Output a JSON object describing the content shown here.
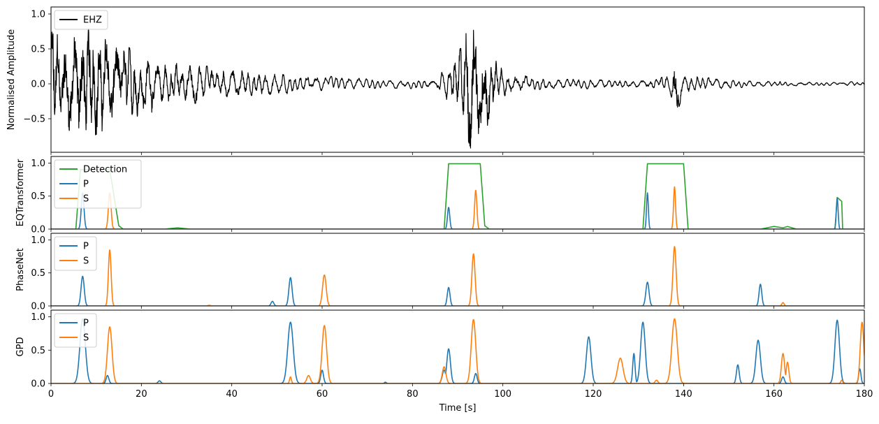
{
  "colors": {
    "waveform": "#000000",
    "detection": "#2ca02c",
    "p": "#1f77b4",
    "s": "#ff7f0e"
  },
  "chart_data": [
    {
      "type": "line",
      "id": "waveform",
      "ylabel": "Normalised Amplitude",
      "ylim": [
        -0.98,
        1.1
      ],
      "yticks": [
        -0.5,
        0.0,
        0.5,
        1.0
      ],
      "ytick_labels": [
        "−0.5",
        "0.0",
        "0.5",
        "1.0"
      ],
      "xlim": [
        0,
        180
      ],
      "legend": "top-left",
      "series": [
        {
          "name": "EHZ",
          "color": "#000000",
          "envelope": [
            [
              0,
              0.95
            ],
            [
              2,
              0.6
            ],
            [
              5,
              0.7
            ],
            [
              8,
              0.8
            ],
            [
              12,
              0.65
            ],
            [
              18,
              0.5
            ],
            [
              25,
              0.35
            ],
            [
              35,
              0.25
            ],
            [
              45,
              0.2
            ],
            [
              55,
              0.12
            ],
            [
              65,
              0.1
            ],
            [
              75,
              0.06
            ],
            [
              85,
              0.08
            ],
            [
              88,
              0.25
            ],
            [
              91,
              0.55
            ],
            [
              93,
              0.95
            ],
            [
              96,
              0.7
            ],
            [
              98,
              0.35
            ],
            [
              102,
              0.15
            ],
            [
              110,
              0.08
            ],
            [
              130,
              0.06
            ],
            [
              137,
              0.12
            ],
            [
              138,
              0.5
            ],
            [
              140,
              0.15
            ],
            [
              150,
              0.06
            ],
            [
              165,
              0.03
            ],
            [
              180,
              0.03
            ]
          ]
        }
      ]
    },
    {
      "type": "line",
      "id": "eqtransformer",
      "ylabel": "EQTransformer",
      "ylim": [
        0,
        1.1
      ],
      "yticks": [
        0.0,
        0.5,
        1.0
      ],
      "ytick_labels": [
        "0.0",
        "0.5",
        "1.0"
      ],
      "xlim": [
        0,
        180
      ],
      "legend": "top-left",
      "series": [
        {
          "name": "Detection",
          "color": "#2ca02c",
          "points": [
            [
              0,
              0
            ],
            [
              5.5,
              0
            ],
            [
              6.5,
              0.9
            ],
            [
              13,
              0.9
            ],
            [
              15,
              0.05
            ],
            [
              16,
              0
            ],
            [
              25,
              0
            ],
            [
              28,
              0.02
            ],
            [
              31,
              0
            ],
            [
              87,
              0
            ],
            [
              88,
              0.99
            ],
            [
              95,
              0.99
            ],
            [
              96,
              0.05
            ],
            [
              97,
              0
            ],
            [
              131,
              0
            ],
            [
              132,
              0.99
            ],
            [
              140,
              0.99
            ],
            [
              141,
              0
            ],
            [
              157,
              0
            ],
            [
              160,
              0.04
            ],
            [
              162,
              0.02
            ],
            [
              163,
              0.04
            ],
            [
              165,
              0
            ],
            [
              173.5,
              0
            ],
            [
              174,
              0.48
            ],
            [
              175,
              0.42
            ],
            [
              175.2,
              0
            ],
            [
              180,
              0
            ]
          ]
        },
        {
          "name": "P",
          "color": "#1f77b4",
          "peaks": [
            [
              7,
              0.55,
              0.3
            ],
            [
              88,
              0.33,
              0.25
            ],
            [
              132,
              0.55,
              0.2
            ],
            [
              174,
              0.47,
              0.2
            ]
          ]
        },
        {
          "name": "S",
          "color": "#ff7f0e",
          "peaks": [
            [
              13,
              0.55,
              0.3
            ],
            [
              94,
              0.59,
              0.25
            ],
            [
              138,
              0.64,
              0.22
            ]
          ]
        }
      ]
    },
    {
      "type": "line",
      "id": "phasenet",
      "ylabel": "PhaseNet",
      "ylim": [
        0,
        1.1
      ],
      "yticks": [
        0.0,
        0.5,
        1.0
      ],
      "ytick_labels": [
        "0.0",
        "0.5",
        "1.0"
      ],
      "xlim": [
        0,
        180
      ],
      "legend": "top-left",
      "series": [
        {
          "name": "P",
          "color": "#1f77b4",
          "peaks": [
            [
              7,
              0.45,
              0.35
            ],
            [
              49,
              0.07,
              0.3
            ],
            [
              53,
              0.43,
              0.35
            ],
            [
              88,
              0.28,
              0.3
            ],
            [
              132,
              0.36,
              0.35
            ],
            [
              157,
              0.33,
              0.3
            ]
          ]
        },
        {
          "name": "S",
          "color": "#ff7f0e",
          "peaks": [
            [
              13,
              0.85,
              0.3
            ],
            [
              35,
              0.01,
              0.3
            ],
            [
              60.5,
              0.47,
              0.4
            ],
            [
              93.5,
              0.79,
              0.35
            ],
            [
              138,
              0.9,
              0.35
            ],
            [
              162,
              0.05,
              0.25
            ]
          ]
        }
      ]
    },
    {
      "type": "line",
      "id": "gpd",
      "ylabel": "GPD",
      "ylim": [
        0,
        1.1
      ],
      "yticks": [
        0.0,
        0.5,
        1.0
      ],
      "ytick_labels": [
        "0.0",
        "0.5",
        "1.0"
      ],
      "xlim": [
        0,
        180
      ],
      "xlabel": "Time [s]",
      "xticks": [
        0,
        20,
        40,
        60,
        80,
        100,
        120,
        140,
        160,
        180
      ],
      "xtick_labels": [
        "0",
        "20",
        "40",
        "60",
        "80",
        "100",
        "120",
        "140",
        "160",
        "180"
      ],
      "legend": "top-left",
      "series": [
        {
          "name": "P",
          "color": "#1f77b4",
          "peaks": [
            [
              7,
              0.97,
              0.6
            ],
            [
              12.5,
              0.12,
              0.3
            ],
            [
              24,
              0.04,
              0.3
            ],
            [
              53,
              0.92,
              0.6
            ],
            [
              60,
              0.2,
              0.3
            ],
            [
              74,
              0.02,
              0.2
            ],
            [
              87,
              0.2,
              0.4
            ],
            [
              88,
              0.52,
              0.4
            ],
            [
              94,
              0.15,
              0.3
            ],
            [
              119,
              0.7,
              0.5
            ],
            [
              129,
              0.45,
              0.25
            ],
            [
              131,
              0.92,
              0.5
            ],
            [
              152,
              0.28,
              0.3
            ],
            [
              156.5,
              0.65,
              0.5
            ],
            [
              162,
              0.1,
              0.3
            ],
            [
              174,
              0.95,
              0.5
            ],
            [
              179,
              0.22,
              0.25
            ]
          ]
        },
        {
          "name": "S",
          "color": "#ff7f0e",
          "peaks": [
            [
              13,
              0.85,
              0.5
            ],
            [
              53,
              0.1,
              0.2
            ],
            [
              57,
              0.12,
              0.4
            ],
            [
              60.5,
              0.87,
              0.5
            ],
            [
              87,
              0.25,
              0.4
            ],
            [
              93.5,
              0.96,
              0.5
            ],
            [
              126,
              0.38,
              0.6
            ],
            [
              134,
              0.05,
              0.3
            ],
            [
              138,
              0.97,
              0.6
            ],
            [
              162,
              0.45,
              0.35
            ],
            [
              163,
              0.32,
              0.3
            ],
            [
              175,
              0.05,
              0.2
            ],
            [
              179.5,
              0.92,
              0.4
            ]
          ]
        }
      ]
    }
  ]
}
